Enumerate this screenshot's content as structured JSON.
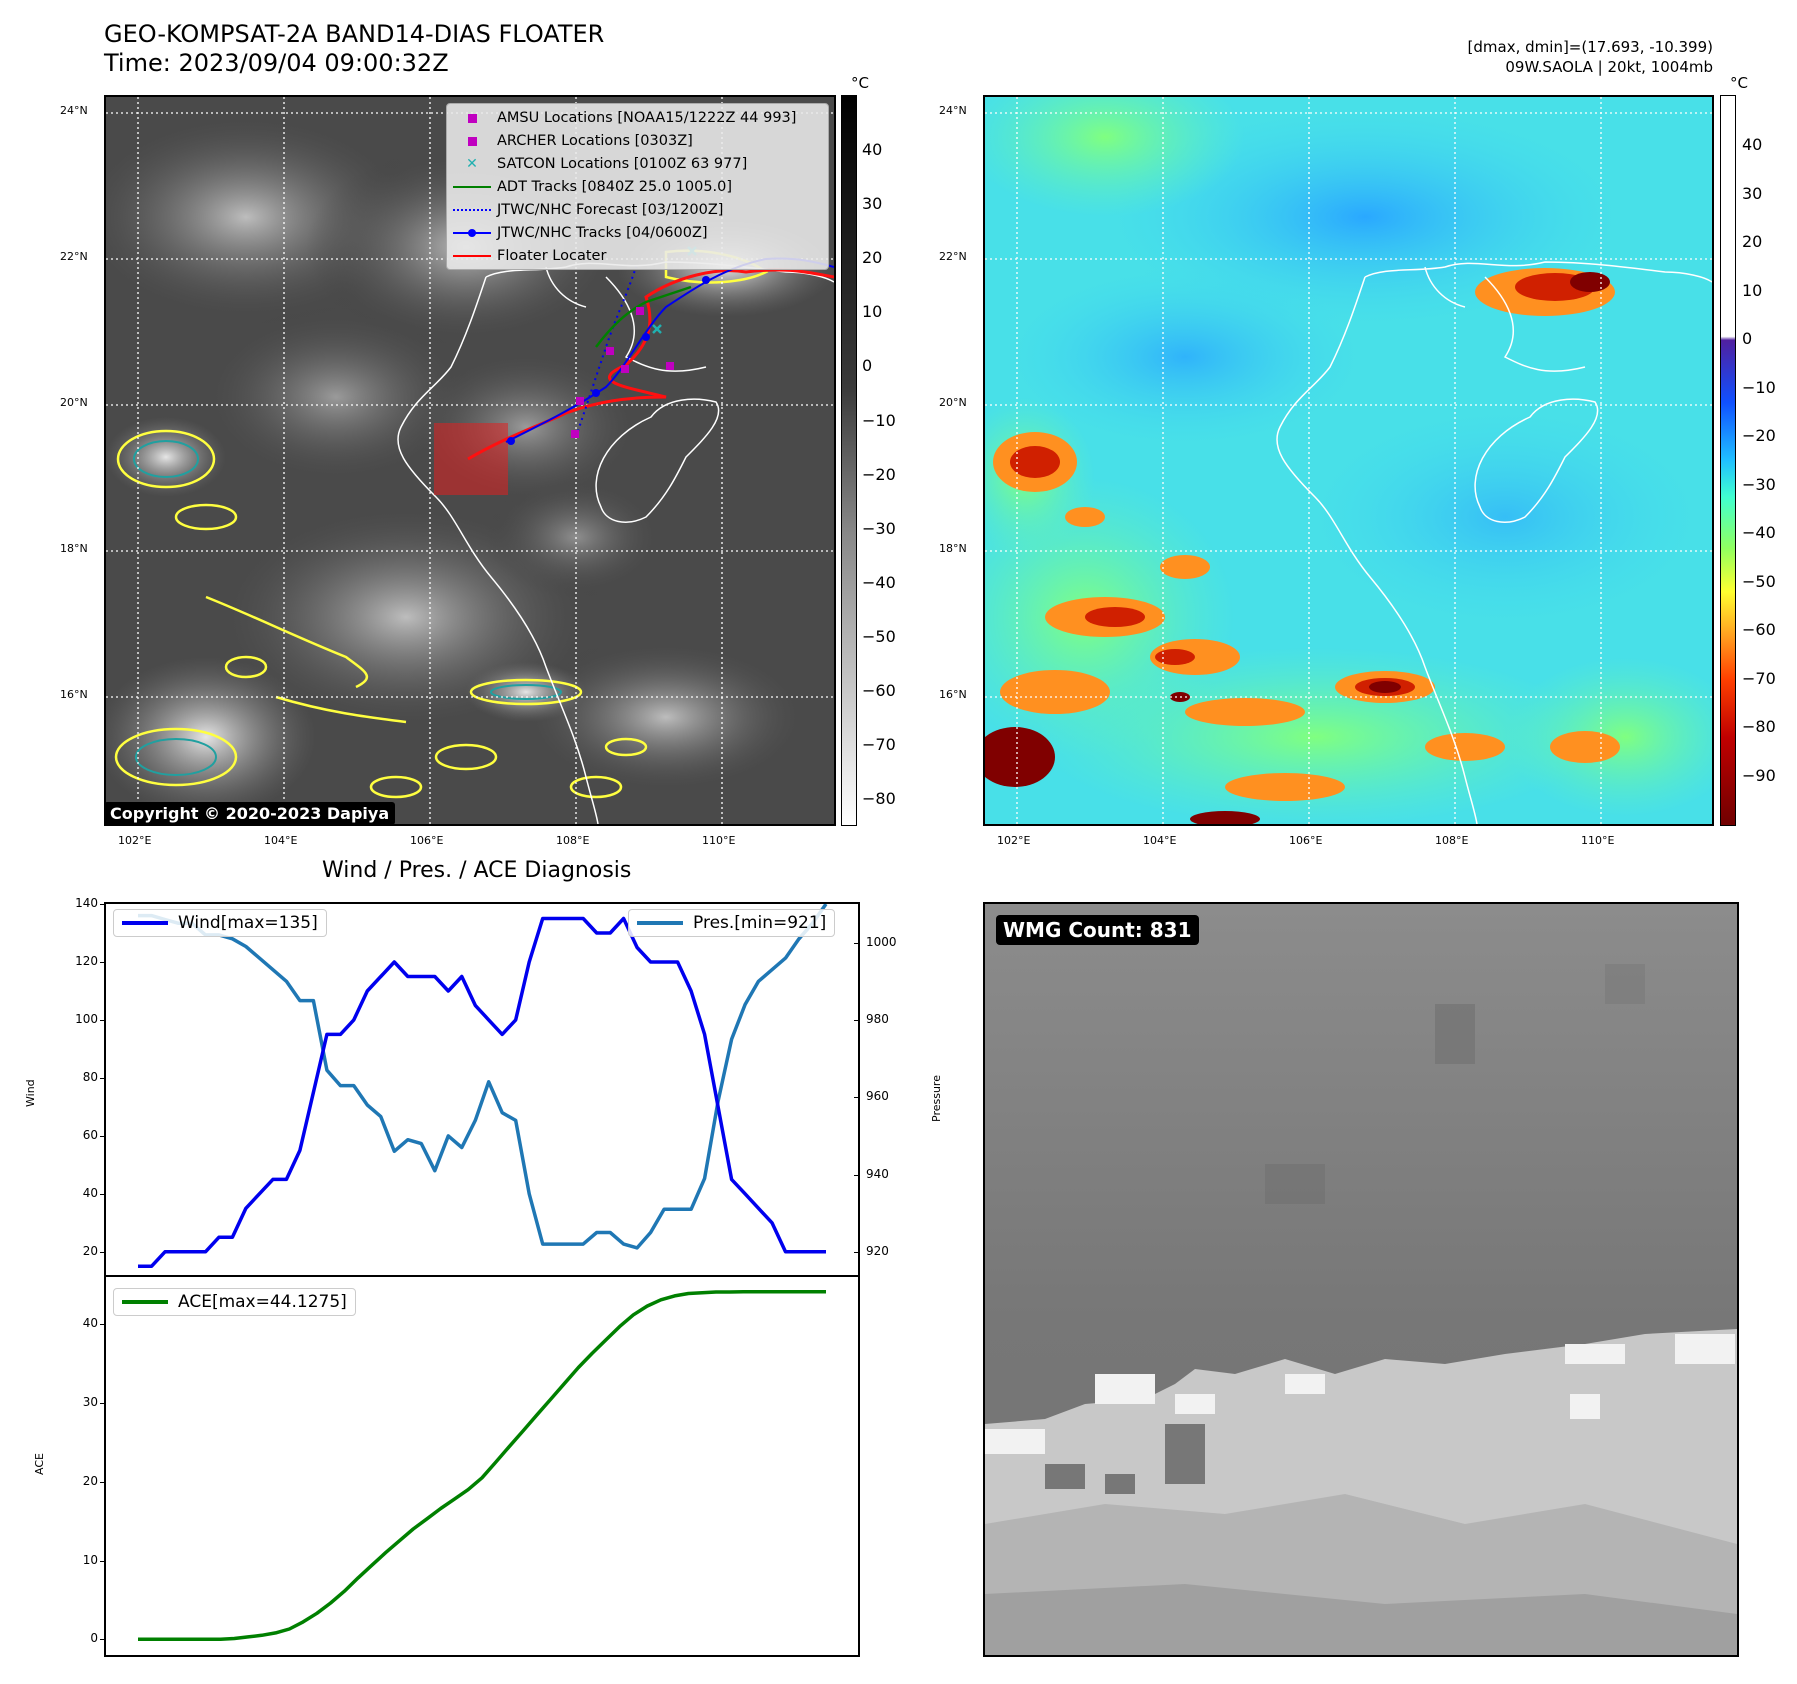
{
  "header": {
    "title": "GEO-KOMPSAT-2A BAND14-DIAS FLOATER",
    "time": "Time: 2023/09/04 09:00:32Z",
    "dmax_dmin": "[dmax, dmin]=(17.693, -10.399)",
    "storm_info": "09W.SAOLA | 20kt, 1004mb"
  },
  "ir_map": {
    "unit": "°C",
    "colorbar_ticks": [
      "40",
      "30",
      "20",
      "10",
      "0",
      "−10",
      "−20",
      "−30",
      "−40",
      "−50",
      "−60",
      "−70",
      "−80"
    ],
    "lat_labels": [
      "24°N",
      "22°N",
      "20°N",
      "18°N",
      "16°N"
    ],
    "lon_labels": [
      "102°E",
      "104°E",
      "106°E",
      "108°E",
      "110°E"
    ],
    "copyright": "Copyright © 2020-2023 Dapiya",
    "legend": [
      {
        "label": "AMSU Locations [NOAA15/1222Z 44 993]",
        "color": "#c000c0",
        "kind": "square"
      },
      {
        "label": "ARCHER Locations [0303Z]",
        "color": "#c000c0",
        "kind": "square"
      },
      {
        "label": "SATCON Locations [0100Z 63 977]",
        "color": "#20b0b0",
        "kind": "x"
      },
      {
        "label": "ADT Tracks [0840Z 25.0 1005.0]",
        "color": "#008000",
        "kind": "line"
      },
      {
        "label": "JTWC/NHC Forecast [03/1200Z]",
        "color": "#0000ff",
        "kind": "dotted"
      },
      {
        "label": "JTWC/NHC Tracks [04/0600Z]",
        "color": "#0000ff",
        "kind": "marker-line"
      },
      {
        "label": "Floater Locater",
        "color": "#ff0000",
        "kind": "line"
      }
    ]
  },
  "dias_map": {
    "unit": "°C",
    "colorbar_ticks": [
      "40",
      "30",
      "20",
      "10",
      "0",
      "−10",
      "−20",
      "−30",
      "−40",
      "−50",
      "−60",
      "−70",
      "−80",
      "−90"
    ],
    "lat_labels": [
      "24°N",
      "22°N",
      "20°N",
      "18°N",
      "16°N"
    ],
    "lon_labels": [
      "102°E",
      "104°E",
      "106°E",
      "108°E",
      "110°E"
    ]
  },
  "diagnosis": {
    "title": "Wind / Pres. / ACE Diagnosis",
    "wind_legend": "Wind[max=135]",
    "pres_legend": "Pres.[min=921]",
    "ace_legend": "ACE[max=44.1275]",
    "wind_ylabel": "Wind",
    "pres_ylabel": "Pressure",
    "ace_ylabel": "ACE",
    "wmg_count": "WMG Count: 831"
  },
  "chart_data": [
    {
      "type": "line",
      "title": "Wind / Pres. / ACE Diagnosis",
      "ylabel": "Wind",
      "y2label": "Pressure",
      "ylim": [
        12,
        140
      ],
      "y2lim": [
        914,
        1010
      ],
      "wind_ticks": [
        20,
        40,
        60,
        80,
        100,
        120,
        140
      ],
      "pres_ticks": [
        920,
        940,
        960,
        980,
        1000
      ],
      "series": [
        {
          "name": "Wind[max=135]",
          "color": "#0000ee",
          "values": [
            15,
            15,
            20,
            20,
            20,
            20,
            25,
            25,
            35,
            40,
            45,
            45,
            55,
            75,
            95,
            95,
            100,
            110,
            115,
            120,
            115,
            115,
            115,
            110,
            115,
            105,
            100,
            95,
            100,
            120,
            135,
            135,
            135,
            135,
            130,
            130,
            135,
            125,
            120,
            120,
            120,
            110,
            95,
            70,
            45,
            40,
            35,
            30,
            20,
            20,
            20,
            20
          ]
        },
        {
          "name": "Pres.[min=921]",
          "color": "#1f77b4",
          "axis": "right",
          "values": [
            1007,
            1007,
            1006,
            1005,
            1005,
            1002,
            1002,
            1001,
            999,
            996,
            993,
            990,
            985,
            985,
            967,
            963,
            963,
            958,
            955,
            946,
            949,
            948,
            941,
            950,
            947,
            954,
            964,
            956,
            954,
            935,
            922,
            922,
            922,
            922,
            925,
            925,
            922,
            921,
            925,
            931,
            931,
            931,
            939,
            959,
            975,
            984,
            990,
            993,
            996,
            1001,
            1005,
            1010
          ]
        }
      ]
    },
    {
      "type": "line",
      "ylabel": "ACE",
      "ylim": [
        -2,
        46
      ],
      "y_ticks": [
        0,
        10,
        20,
        30,
        40
      ],
      "series": [
        {
          "name": "ACE[max=44.1275]",
          "color": "#008000",
          "values": [
            0,
            0,
            0,
            0,
            0,
            0,
            0,
            0.1,
            0.3,
            0.5,
            0.8,
            1.3,
            2.2,
            3.3,
            4.6,
            6.1,
            7.8,
            9.4,
            11.0,
            12.5,
            14.0,
            15.3,
            16.6,
            17.8,
            19.0,
            20.5,
            22.5,
            24.5,
            26.5,
            28.5,
            30.5,
            32.5,
            34.5,
            36.3,
            38.0,
            39.7,
            41.2,
            42.3,
            43.1,
            43.6,
            43.9,
            44.0,
            44.1,
            44.1,
            44.1275,
            44.1275,
            44.1275,
            44.1275,
            44.1275,
            44.1275,
            44.1275
          ]
        }
      ]
    }
  ]
}
